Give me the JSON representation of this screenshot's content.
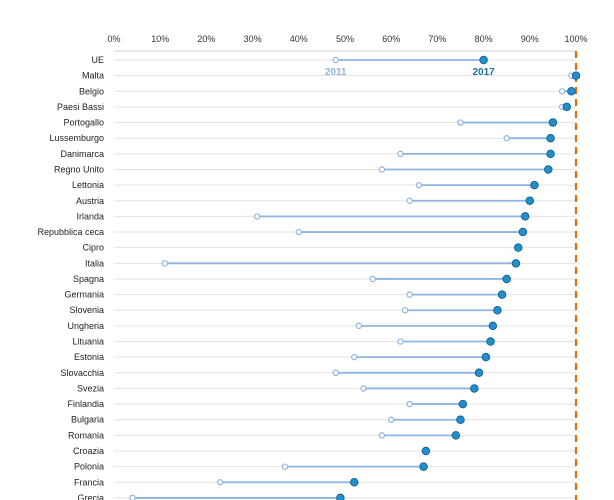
{
  "chart_data": {
    "type": "dumbbell",
    "xlim": [
      0,
      100
    ],
    "x_ticks": [
      "0%",
      "10%",
      "20%",
      "30%",
      "40%",
      "50%",
      "60%",
      "70%",
      "80%",
      "90%",
      "100%"
    ],
    "x_tick_values": [
      0,
      10,
      20,
      30,
      40,
      50,
      60,
      70,
      80,
      90,
      100
    ],
    "grid": true,
    "reference_line": {
      "value": 100,
      "color": "#E46C0A"
    },
    "series": [
      {
        "name": "2011",
        "color": "#8EB4E3"
      },
      {
        "name": "2017",
        "color": "#1F8FCF"
      }
    ],
    "categories": [
      "UE",
      "Malta",
      "Belgio",
      "Paesi Bassi",
      "Portogallo",
      "Lussemburgo",
      "Danimarca",
      "Regno Unito",
      "Lettonia",
      "Austria",
      "Irlanda",
      "Repubblica ceca",
      "Cipro",
      "Italia",
      "Spagna",
      "Germania",
      "Slovenia",
      "Ungheria",
      "Lituania",
      "Estonia",
      "Slovacchia",
      "Svezia",
      "Finlandia",
      "Bulgaria",
      "Romania",
      "Croazia",
      "Polonia",
      "Francia",
      "Grecia"
    ],
    "values_2011": [
      48,
      99,
      97,
      97,
      75,
      85,
      62,
      58,
      66,
      64,
      31,
      40,
      null,
      11,
      56,
      64,
      63,
      53,
      62,
      52,
      48,
      54,
      64,
      60,
      58,
      null,
      37,
      23,
      4
    ],
    "values_2017": [
      80,
      100,
      99,
      98,
      95,
      94.5,
      94.5,
      94,
      91,
      90,
      89,
      88.5,
      87.5,
      87,
      85,
      84,
      83,
      82,
      81.5,
      80.5,
      79,
      78,
      75.5,
      75,
      74,
      67.5,
      67,
      52,
      49
    ]
  }
}
